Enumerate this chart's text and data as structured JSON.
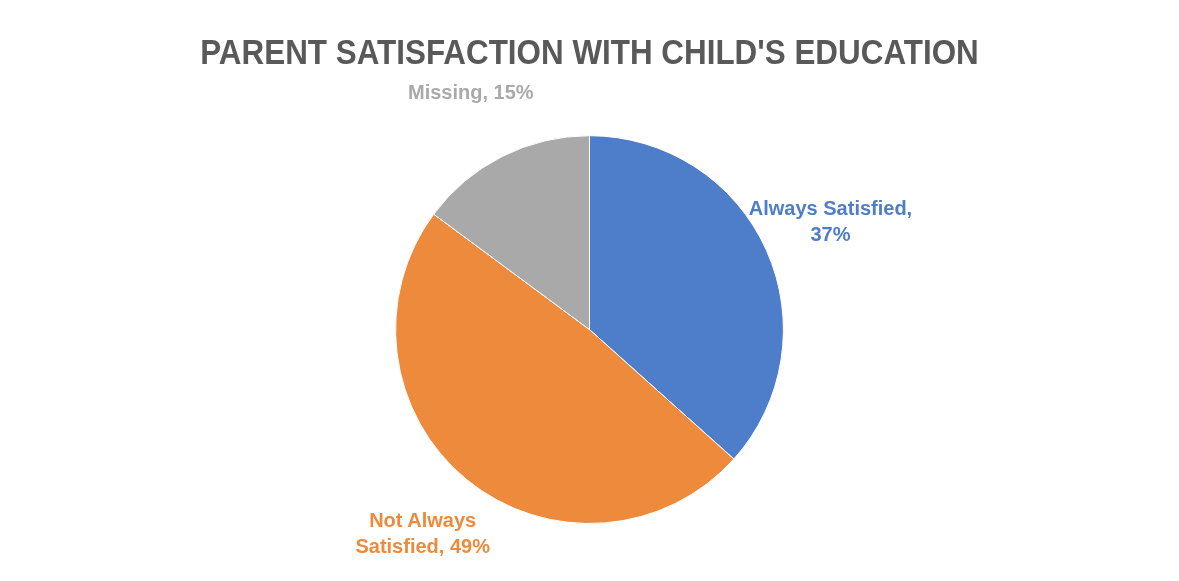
{
  "chart_data": {
    "type": "pie",
    "title": "PARENT SATISFACTION WITH CHILD'S EDUCATION",
    "categories": [
      "Always Satisfied",
      "Not Always Satisfied",
      "Missing"
    ],
    "values": [
      37,
      49,
      15
    ],
    "colors": [
      "#4e7dc9",
      "#ee8a3b",
      "#a9a9a9"
    ],
    "value_labels": [
      ", 37%",
      ", 49%",
      ", 15%"
    ],
    "legend": false
  }
}
